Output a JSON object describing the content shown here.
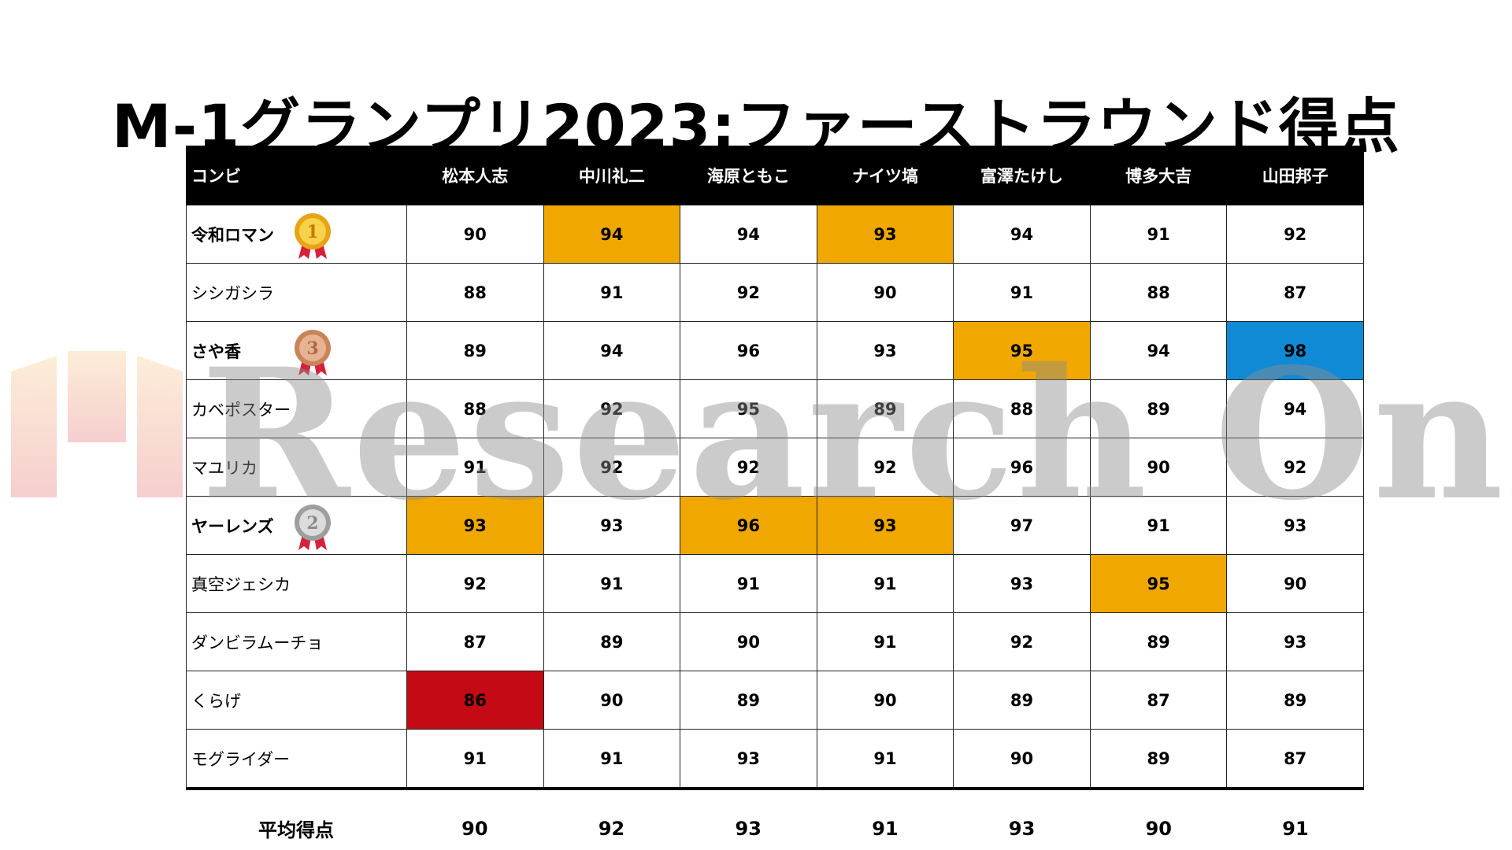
{
  "title": "M-1グランプリ2023:ファーストラウンド得点",
  "watermark": {
    "text": "Research Online"
  },
  "colors": {
    "highlight_orange": "#f0a800",
    "highlight_blue": "#118ad6",
    "highlight_red": "#c40a14",
    "header_bg": "#000000"
  },
  "table": {
    "combi_header": "コンビ",
    "judges": [
      "松本人志",
      "中川礼二",
      "海原ともこ",
      "ナイツ塙",
      "富澤たけし",
      "博多大吉",
      "山田邦子"
    ],
    "rows": [
      {
        "combi": "令和ロマン",
        "medal": "gold-medal-1",
        "scores": [
          "90",
          "94",
          "94",
          "93",
          "94",
          "91",
          "92"
        ],
        "highlights": [
          "",
          "orange",
          "",
          "orange",
          "",
          "",
          ""
        ]
      },
      {
        "combi": "シシガシラ",
        "medal": "",
        "scores": [
          "88",
          "91",
          "92",
          "90",
          "91",
          "88",
          "87"
        ],
        "highlights": [
          "",
          "",
          "",
          "",
          "",
          "",
          ""
        ]
      },
      {
        "combi": "さや香",
        "medal": "bronze-medal-3",
        "scores": [
          "89",
          "94",
          "96",
          "93",
          "95",
          "94",
          "98"
        ],
        "highlights": [
          "",
          "",
          "",
          "",
          "orange",
          "",
          "blue"
        ]
      },
      {
        "combi": "カベポスター",
        "medal": "",
        "scores": [
          "88",
          "92",
          "95",
          "89",
          "88",
          "89",
          "94"
        ],
        "highlights": [
          "",
          "",
          "",
          "",
          "",
          "",
          ""
        ]
      },
      {
        "combi": "マユリカ",
        "medal": "",
        "scores": [
          "91",
          "92",
          "92",
          "92",
          "96",
          "90",
          "92"
        ],
        "highlights": [
          "",
          "",
          "",
          "",
          "",
          "",
          ""
        ]
      },
      {
        "combi": "ヤーレンズ",
        "medal": "silver-medal-2",
        "scores": [
          "93",
          "93",
          "96",
          "93",
          "97",
          "91",
          "93"
        ],
        "highlights": [
          "orange",
          "",
          "orange",
          "orange",
          "",
          "",
          ""
        ]
      },
      {
        "combi": "真空ジェシカ",
        "medal": "",
        "scores": [
          "92",
          "91",
          "91",
          "91",
          "93",
          "95",
          "90"
        ],
        "highlights": [
          "",
          "",
          "",
          "",
          "",
          "orange",
          ""
        ]
      },
      {
        "combi": "ダンビラムーチョ",
        "medal": "",
        "scores": [
          "87",
          "89",
          "90",
          "91",
          "92",
          "89",
          "93"
        ],
        "highlights": [
          "",
          "",
          "",
          "",
          "",
          "",
          ""
        ]
      },
      {
        "combi": "くらげ",
        "medal": "",
        "scores": [
          "86",
          "90",
          "89",
          "90",
          "89",
          "87",
          "89"
        ],
        "highlights": [
          "red",
          "",
          "",
          "",
          "",
          "",
          ""
        ]
      },
      {
        "combi": "モグライダー",
        "medal": "",
        "scores": [
          "91",
          "91",
          "93",
          "91",
          "90",
          "89",
          "87"
        ],
        "highlights": [
          "",
          "",
          "",
          "",
          "",
          "",
          ""
        ]
      }
    ],
    "average": {
      "label": "平均得点",
      "values": [
        "90",
        "92",
        "93",
        "91",
        "93",
        "90",
        "91"
      ]
    }
  }
}
